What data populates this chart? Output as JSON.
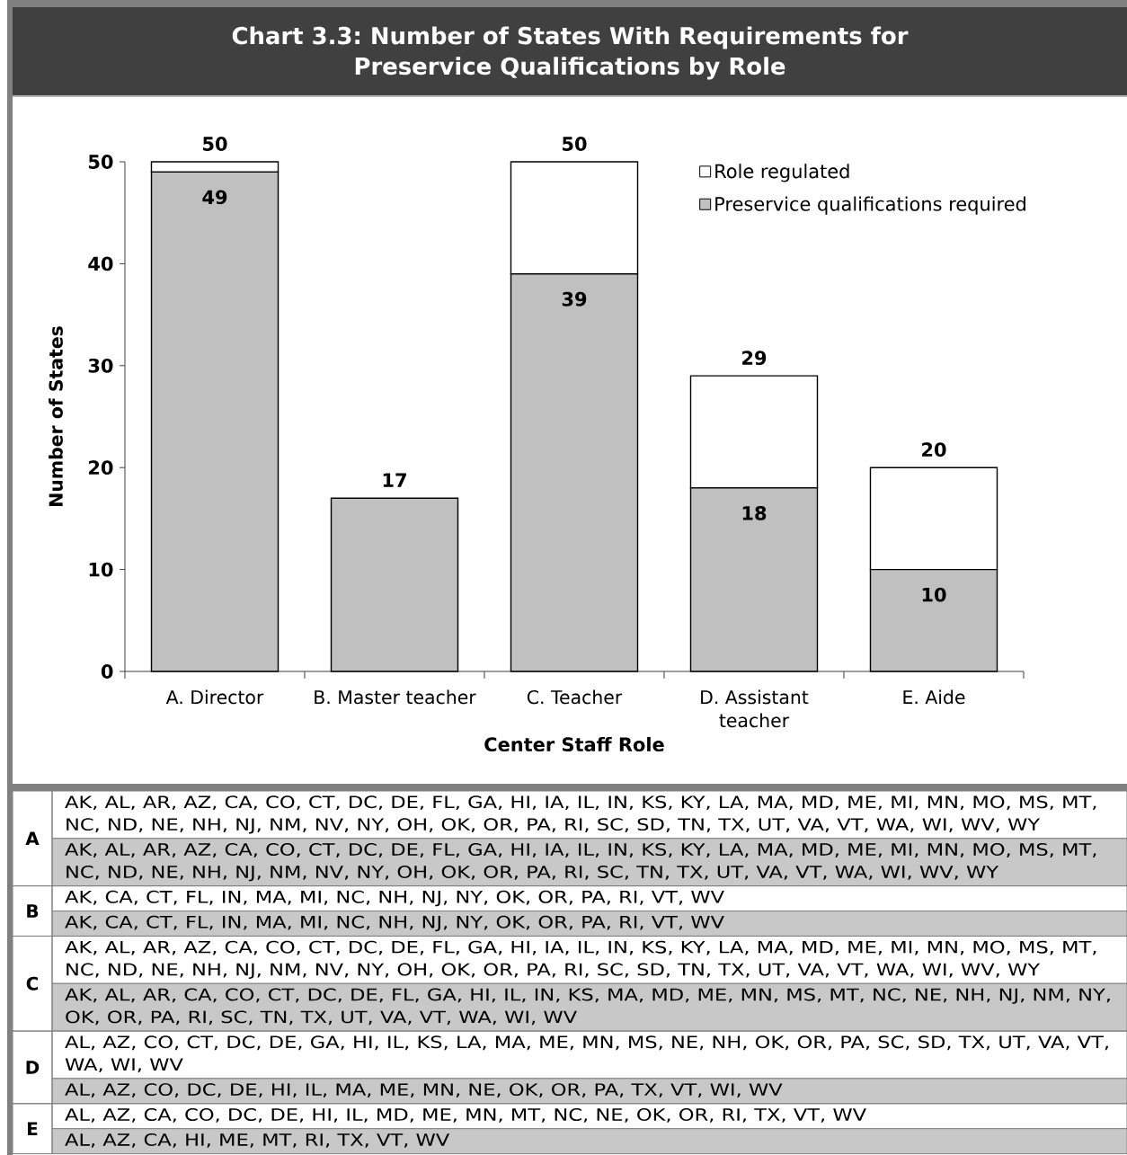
{
  "chart_data": {
    "type": "bar",
    "title": "Chart 3.3: Number of States With Requirements for Preservice Qualifications by Role",
    "xlabel": "Center Staff Role",
    "ylabel": "Number of States",
    "categories": [
      "A. Director",
      "B. Master teacher",
      "C. Teacher",
      "D. Assistant teacher",
      "E. Aide"
    ],
    "stacked": true,
    "series": [
      {
        "name": "Preservice qualifications required",
        "color": "#c0c0c0",
        "values": [
          49,
          17,
          39,
          18,
          10
        ],
        "value_labels": [
          "49",
          null,
          "39",
          "18",
          "10"
        ]
      },
      {
        "name": "Role regulated",
        "color": "#ffffff",
        "values": [
          1,
          0,
          11,
          11,
          10
        ]
      }
    ],
    "totals": [
      "50",
      "17",
      "50",
      "29",
      "20"
    ],
    "ylim": [
      0,
      50
    ],
    "yticks": [
      0,
      10,
      20,
      30,
      40,
      50
    ],
    "legend": "top right",
    "annotations": [
      "A",
      "AK, AL, AR, AZ, CA, CO, CT, DC, DE, FL, GA, HI, IA, IL, IN, KS, KY, LA, MA, MD, ME, MI, MN, MO, MS, MT, NC, ND, NE, NH, NJ, NM, NV, NY, OH, OK, OR, PA, RI, SC, SD, TN, TX, UT, VA, VT, WA, WI, WV, WY",
      "AK, AL, AR, AZ, CA, CO, CT, DC, DE, FL, GA, HI, IA, IL, IN, KS, KY, LA, MA, MD, ME, MI, MN, MO, MS, MT, NC, ND, NE, NH, NJ, NM, NV, NY, OH, OK, OR, PA, RI, SC, TN, TX, UT, VA, VT, WA, WI, WV, WY",
      "B",
      "AK, CA, CT, FL, IN, MA, MI, NC, NH, NJ, NY, OK, OR, PA, RI, VT, WV",
      "AK, CA, CT, FL, IN, MA, MI, NC, NH, NJ, NY, OK, OR, PA, RI, VT, WV",
      "C",
      "AK, AL, AR, AZ, CA, CO, CT, DC, DE, FL, GA, HI, IA, IL, IN, KS, KY, LA, MA, MD, ME, MI, MN, MO, MS, MT, NC, ND, NE, NH, NJ, NM, NV, NY, OH, OK, OR, PA, RI, SC, SD, TN, TX, UT, VA, VT, WA, WI, WV, WY",
      "AK, AL, AR, CA, CO, CT, DC, DE, FL, GA, HI, IL, IN, KS, MA, MD, ME, MN, MS, MT, NC, NE, NH, NJ, NM, NY, OK, OR, PA, RI, SC, TN, TX, UT, VA, VT, WA, WI, WV",
      "D",
      "AL, AZ, CO, CT, DC, DE, GA, HI, IL, KS, LA, MA, ME, MN, MS, NE, NH, OK, OR, PA, SC, SD, TX, UT, VA, VT, WA, WI, WV",
      "AL, AZ, CO, DC, DE, HI, IL, MA, ME, MN, NE, OK, OR, PA, TX, VT, WI, WV",
      "E",
      "AL, AZ, CA, CO, DC, DE, HI, IL, MD, ME, MN, MT, NC, NE, OK, OR, RI, TX, VT, WV",
      "AL, AZ, CA, HI, ME, MT, RI, TX, VT, WV"
    ]
  }
}
